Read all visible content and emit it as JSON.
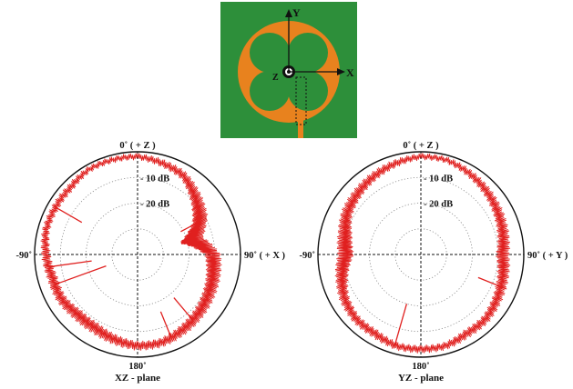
{
  "antenna": {
    "axis_y": "Y",
    "axis_x": "X",
    "axis_z": "Z",
    "colors": {
      "substrate": "#2d8f3a",
      "metal": "#e8821e",
      "axis": "#111111"
    }
  },
  "chart_data": [
    {
      "type": "polar",
      "plane": "XZ - plane",
      "angle_labels": {
        "top": "0˚ ( + Z )",
        "right": "90˚ ( + X )",
        "bottom": "180˚",
        "left": "-90˚"
      },
      "ring_labels": [
        "- 10 dB",
        "- 20 dB"
      ],
      "rings_db": [
        -10,
        -20,
        -30
      ],
      "r_range_db": [
        -40,
        0
      ],
      "grid": true,
      "line_color": "#e0201f",
      "angles_deg": [
        0,
        15,
        30,
        45,
        60,
        75,
        90,
        105,
        120,
        135,
        150,
        165,
        180,
        195,
        210,
        225,
        240,
        255,
        270,
        285,
        300,
        315,
        330,
        345
      ],
      "gain_db": [
        -1,
        -2,
        -3,
        -6,
        -9,
        -14,
        -8,
        -7,
        -6,
        -5,
        -4,
        -3,
        -3,
        -4,
        -5,
        -5,
        -4,
        -4,
        -3,
        -2,
        -2,
        -2,
        -1,
        -1
      ],
      "spikes": [
        {
          "angle_deg": 62,
          "gain_db": -21
        },
        {
          "angle_deg": 140,
          "gain_db": -18
        },
        {
          "angle_deg": 158,
          "gain_db": -16
        },
        {
          "angle_deg": 250,
          "gain_db": -27
        },
        {
          "angle_deg": 262,
          "gain_db": -22
        },
        {
          "angle_deg": 300,
          "gain_db": -15
        }
      ]
    },
    {
      "type": "polar",
      "plane": "YZ - plane",
      "angle_labels": {
        "top": "0˚ ( + Z )",
        "right": "90˚ ( + Y )",
        "bottom": "180˚",
        "left": "-90˚"
      },
      "ring_labels": [
        "- 10 dB",
        "- 20 dB"
      ],
      "rings_db": [
        -10,
        -20,
        -30
      ],
      "r_range_db": [
        -40,
        0
      ],
      "grid": true,
      "line_color": "#e0201f",
      "angles_deg": [
        0,
        15,
        30,
        45,
        60,
        75,
        90,
        105,
        120,
        135,
        150,
        165,
        180,
        195,
        210,
        225,
        240,
        255,
        270,
        285,
        300,
        315,
        330,
        345
      ],
      "gain_db": [
        -1,
        -1,
        -2,
        -3,
        -4,
        -5,
        -6,
        -5,
        -4,
        -3,
        -3,
        -2,
        -2,
        -2,
        -3,
        -3,
        -4,
        -6,
        -8,
        -7,
        -5,
        -4,
        -3,
        -2
      ],
      "spikes": [
        {
          "angle_deg": 112,
          "gain_db": -16
        },
        {
          "angle_deg": 196,
          "gain_db": -20
        }
      ]
    }
  ]
}
